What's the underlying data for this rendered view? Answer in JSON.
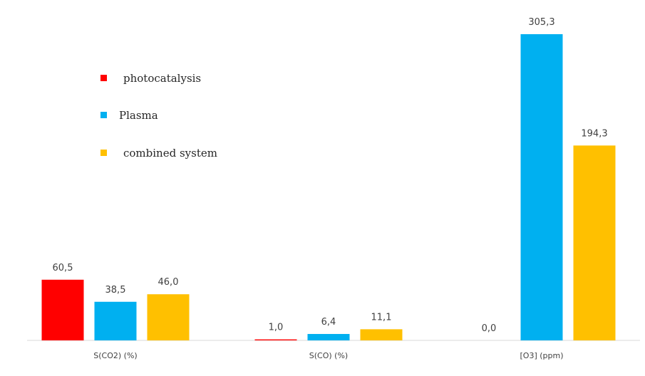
{
  "chart_data": {
    "type": "bar",
    "categories": [
      "S(CO2) (%)",
      "S(CO) (%)",
      "[O3] (ppm)"
    ],
    "series": [
      {
        "name": "photocatalysis",
        "color": "#ff0000",
        "values": [
          60.5,
          1.0,
          0.0
        ],
        "labels": [
          "60,5",
          "1,0",
          "0,0"
        ]
      },
      {
        "name": "Plasma",
        "color": "#00b0f0",
        "values": [
          38.5,
          6.4,
          305.3
        ],
        "labels": [
          "38,5",
          "6,4",
          "305,3"
        ]
      },
      {
        "name": "combined system",
        "color": "#ffc000",
        "values": [
          46.0,
          11.1,
          194.3
        ],
        "labels": [
          "46,0",
          "11,1",
          "194,3"
        ]
      }
    ],
    "ylim": [
      0,
      305.3
    ],
    "grid": false,
    "legend_position": "top-left",
    "title": "",
    "xlabel": "",
    "ylabel": ""
  }
}
